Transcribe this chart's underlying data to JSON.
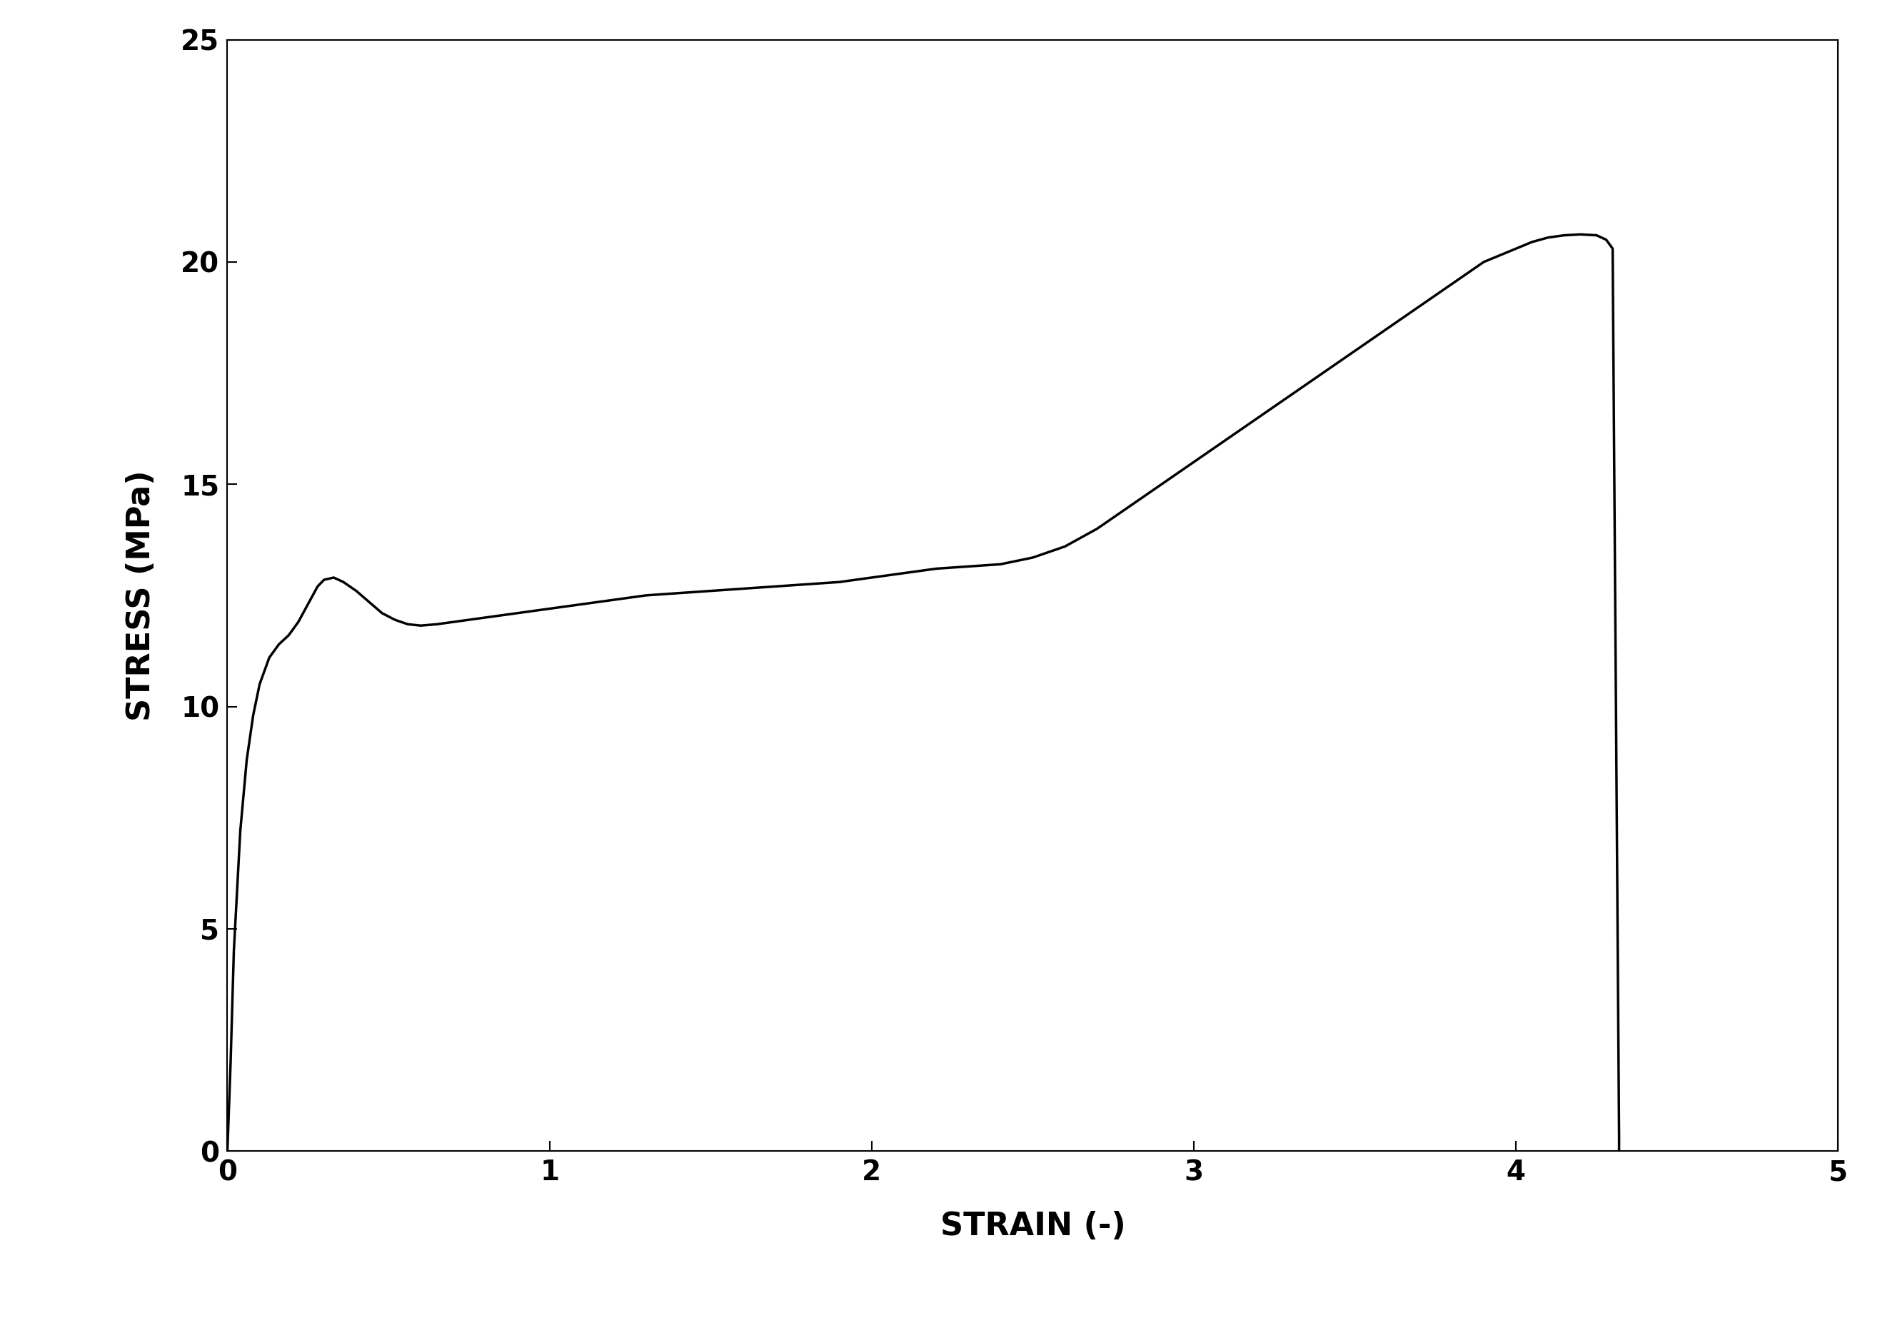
{
  "title": "",
  "xlabel": "STRAIN (-)",
  "ylabel": "STRESS (MPa)",
  "xlim": [
    0,
    5
  ],
  "ylim": [
    0,
    25
  ],
  "xticks": [
    0,
    1,
    2,
    3,
    4,
    5
  ],
  "yticks": [
    0,
    5,
    10,
    15,
    20,
    25
  ],
  "line_color": "#000000",
  "line_width": 2.5,
  "background_color": "#ffffff",
  "xlabel_fontsize": 32,
  "ylabel_fontsize": 32,
  "tick_fontsize": 28,
  "curve_points": {
    "strain": [
      0.0,
      0.01,
      0.02,
      0.04,
      0.06,
      0.08,
      0.1,
      0.13,
      0.16,
      0.19,
      0.22,
      0.25,
      0.28,
      0.3,
      0.33,
      0.36,
      0.4,
      0.44,
      0.48,
      0.52,
      0.56,
      0.6,
      0.65,
      0.7,
      0.75,
      0.8,
      0.85,
      0.9,
      0.95,
      1.0,
      1.1,
      1.2,
      1.3,
      1.4,
      1.5,
      1.6,
      1.7,
      1.8,
      1.9,
      2.0,
      2.1,
      2.15,
      2.2,
      2.3,
      2.4,
      2.5,
      2.6,
      2.7,
      2.8,
      2.9,
      3.0,
      3.1,
      3.2,
      3.3,
      3.4,
      3.5,
      3.6,
      3.7,
      3.8,
      3.9,
      4.0,
      4.05,
      4.1,
      4.15,
      4.2,
      4.25,
      4.28,
      4.3,
      4.32,
      4.32,
      4.32
    ],
    "stress": [
      0.0,
      2.0,
      4.5,
      7.2,
      8.8,
      9.8,
      10.5,
      11.1,
      11.4,
      11.6,
      11.9,
      12.3,
      12.7,
      12.85,
      12.9,
      12.8,
      12.6,
      12.35,
      12.1,
      11.95,
      11.85,
      11.82,
      11.85,
      11.9,
      11.95,
      12.0,
      12.05,
      12.1,
      12.15,
      12.2,
      12.3,
      12.4,
      12.5,
      12.55,
      12.6,
      12.65,
      12.7,
      12.75,
      12.8,
      12.9,
      13.0,
      13.05,
      13.1,
      13.15,
      13.2,
      13.35,
      13.6,
      14.0,
      14.5,
      15.0,
      15.5,
      16.0,
      16.5,
      17.0,
      17.5,
      18.0,
      18.5,
      19.0,
      19.5,
      20.0,
      20.3,
      20.45,
      20.55,
      20.6,
      20.62,
      20.6,
      20.5,
      20.3,
      0.3,
      0.0,
      0.0
    ]
  }
}
